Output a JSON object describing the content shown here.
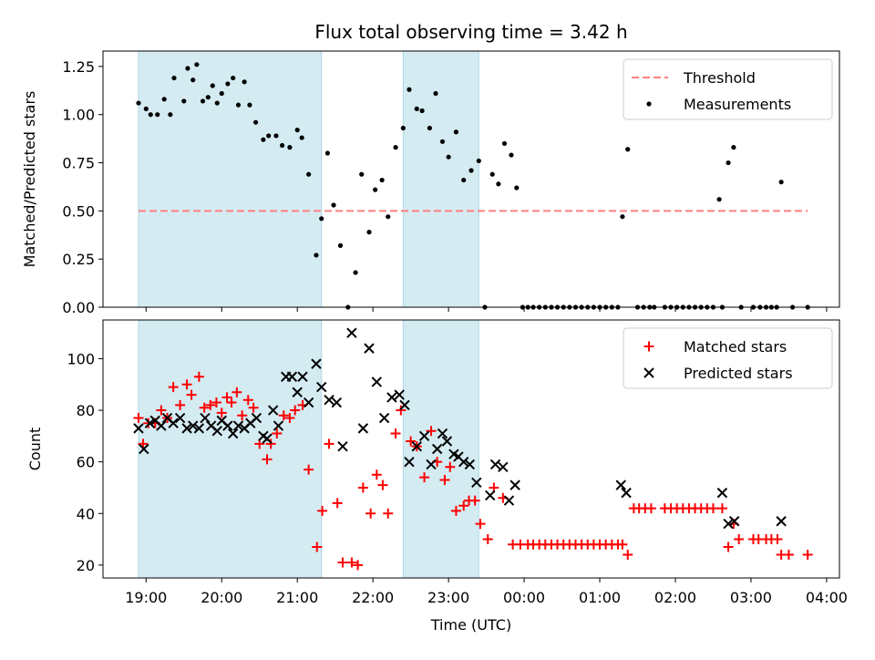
{
  "chart_data": {
    "title": "Flux total observing time = 3.42 h",
    "xlabel": "Time (UTC)",
    "x_unit": "hours UTC (values past 24 are after midnight)",
    "x_ticks": [
      "19:00",
      "20:00",
      "21:00",
      "22:00",
      "23:00",
      "00:00",
      "01:00",
      "02:00",
      "03:00",
      "04:00"
    ],
    "x_tick_values": [
      19,
      20,
      21,
      22,
      23,
      24,
      25,
      26,
      27,
      28
    ],
    "xlim": [
      18.43,
      28.17
    ],
    "shaded_intervals": [
      [
        18.9,
        21.32
      ],
      [
        22.4,
        23.4
      ]
    ],
    "shade_color": "#add8e6",
    "panels": [
      {
        "type": "scatter",
        "ylabel": "Matched/Predicted stars",
        "ylim": [
          0,
          1.33
        ],
        "y_ticks": [
          "0.00",
          "0.25",
          "0.50",
          "0.75",
          "1.00",
          "1.25"
        ],
        "y_tick_values": [
          0,
          0.25,
          0.5,
          0.75,
          1.0,
          1.25
        ],
        "threshold": {
          "name": "Threshold",
          "y": 0.5,
          "x_range": [
            18.9,
            27.75
          ],
          "color": "#ff8080"
        },
        "series": [
          {
            "name": "Measurements",
            "color": "#000000",
            "x": [
              18.9,
              19.0,
              19.06,
              19.15,
              19.24,
              19.32,
              19.37,
              19.5,
              19.55,
              19.62,
              19.67,
              19.75,
              19.82,
              19.88,
              19.94,
              20.0,
              20.08,
              20.15,
              20.22,
              20.3,
              20.37,
              20.45,
              20.55,
              20.62,
              20.72,
              20.8,
              20.9,
              21.0,
              21.06,
              21.15,
              21.25,
              21.32,
              21.4,
              21.48,
              21.57,
              21.67,
              21.77,
              21.85,
              21.95,
              22.03,
              22.12,
              22.2,
              22.3,
              22.4,
              22.48,
              22.58,
              22.65,
              22.75,
              22.83,
              22.92,
              23.0,
              23.1,
              23.2,
              23.3,
              23.4,
              23.48,
              23.58,
              23.66,
              23.74,
              23.83,
              23.9,
              23.98,
              24.05,
              24.12,
              24.2,
              24.28,
              24.36,
              24.44,
              24.52,
              24.6,
              24.68,
              24.76,
              24.84,
              24.92,
              25.0,
              25.08,
              25.16,
              25.24,
              25.3,
              25.37,
              25.5,
              25.58,
              25.66,
              25.72,
              25.86,
              25.94,
              26.02,
              26.1,
              26.18,
              26.26,
              26.34,
              26.42,
              26.5,
              26.58,
              26.62,
              26.7,
              26.77,
              26.87,
              27.03,
              27.12,
              27.2,
              27.27,
              27.34,
              27.4,
              27.55,
              27.75
            ],
            "y": [
              1.06,
              1.03,
              1.0,
              1.0,
              1.08,
              1.0,
              1.19,
              1.07,
              1.24,
              1.18,
              1.26,
              1.07,
              1.09,
              1.15,
              1.06,
              1.11,
              1.16,
              1.19,
              1.05,
              1.17,
              1.05,
              0.96,
              0.87,
              0.89,
              0.89,
              0.84,
              0.83,
              0.92,
              0.88,
              0.69,
              0.27,
              0.46,
              0.8,
              0.53,
              0.32,
              0.0,
              0.18,
              0.69,
              0.39,
              0.61,
              0.66,
              0.47,
              0.83,
              0.93,
              1.13,
              1.03,
              1.02,
              0.93,
              1.11,
              0.86,
              0.78,
              0.91,
              0.66,
              0.71,
              0.76,
              0.0,
              0.69,
              0.64,
              0.85,
              0.79,
              0.62,
              0.0,
              0.0,
              0.0,
              0.0,
              0.0,
              0.0,
              0.0,
              0.0,
              0.0,
              0.0,
              0.0,
              0.0,
              0.0,
              0.0,
              0.0,
              0.0,
              0.0,
              0.47,
              0.82,
              0.0,
              0.0,
              0.0,
              0.0,
              0.0,
              0.0,
              0.0,
              0.0,
              0.0,
              0.0,
              0.0,
              0.0,
              0.0,
              0.56,
              0.0,
              0.75,
              0.83,
              0.0,
              0.0,
              0.0,
              0.0,
              0.0,
              0.0,
              0.65,
              0.0,
              0.0
            ]
          }
        ],
        "legend": {
          "position": "upper right",
          "entries": [
            "Threshold",
            "Measurements"
          ]
        }
      },
      {
        "type": "scatter",
        "ylabel": "Count",
        "ylim": [
          15,
          115
        ],
        "y_ticks": [
          "20",
          "40",
          "60",
          "80",
          "100"
        ],
        "y_tick_values": [
          20,
          40,
          60,
          80,
          100
        ],
        "series": [
          {
            "name": "Matched stars",
            "marker": "+",
            "color": "#ff0000",
            "x": [
              18.9,
              18.96,
              19.03,
              19.12,
              19.2,
              19.28,
              19.36,
              19.45,
              19.54,
              19.6,
              19.7,
              19.77,
              19.85,
              19.93,
              20.0,
              20.07,
              20.13,
              20.2,
              20.27,
              20.35,
              20.42,
              20.5,
              20.6,
              20.65,
              20.73,
              20.82,
              20.9,
              20.97,
              21.07,
              21.15,
              21.26,
              21.33,
              21.42,
              21.53,
              21.6,
              21.72,
              21.8,
              21.87,
              21.97,
              22.05,
              22.13,
              22.2,
              22.3,
              22.37,
              22.5,
              22.58,
              22.68,
              22.77,
              22.85,
              22.95,
              23.02,
              23.1,
              23.2,
              23.27,
              23.35,
              23.42,
              23.52,
              23.6,
              23.72,
              23.85,
              23.95,
              24.05,
              24.12,
              24.2,
              24.28,
              24.36,
              24.44,
              24.52,
              24.6,
              24.68,
              24.76,
              24.84,
              24.92,
              25.0,
              25.08,
              25.16,
              25.24,
              25.3,
              25.37,
              25.45,
              25.52,
              25.6,
              25.68,
              25.86,
              25.94,
              26.02,
              26.1,
              26.18,
              26.26,
              26.34,
              26.42,
              26.5,
              26.62,
              26.7,
              26.77,
              26.84,
              27.03,
              27.1,
              27.2,
              27.27,
              27.35,
              27.4,
              27.5,
              27.75
            ],
            "y": [
              77,
              67,
              75,
              75,
              80,
              77,
              89,
              82,
              90,
              86,
              93,
              81,
              82,
              83,
              79,
              85,
              83,
              87,
              78,
              84,
              81,
              67,
              61,
              67,
              71,
              78,
              77,
              80,
              82,
              57,
              27,
              41,
              67,
              44,
              21,
              21,
              20,
              50,
              40,
              55,
              51,
              40,
              71,
              80,
              68,
              66,
              54,
              72,
              60,
              53,
              58,
              41,
              43,
              45,
              45,
              36,
              30,
              50,
              46,
              28,
              28,
              28,
              28,
              28,
              28,
              28,
              28,
              28,
              28,
              28,
              28,
              28,
              28,
              28,
              28,
              28,
              28,
              28,
              24,
              42,
              42,
              42,
              42,
              42,
              42,
              42,
              42,
              42,
              42,
              42,
              42,
              42,
              42,
              27,
              36,
              30,
              30,
              30,
              30,
              30,
              30,
              24,
              24,
              24
            ]
          },
          {
            "name": "Predicted stars",
            "marker": "x",
            "color": "#000000",
            "x": [
              18.9,
              18.97,
              19.05,
              19.12,
              19.2,
              19.28,
              19.36,
              19.45,
              19.54,
              19.62,
              19.7,
              19.78,
              19.86,
              19.94,
              20.0,
              20.08,
              20.15,
              20.22,
              20.3,
              20.38,
              20.46,
              20.55,
              20.6,
              20.68,
              20.75,
              20.85,
              20.93,
              21.0,
              21.07,
              21.15,
              21.25,
              21.32,
              21.42,
              21.52,
              21.6,
              21.72,
              21.87,
              21.95,
              22.05,
              22.15,
              22.25,
              22.35,
              22.42,
              22.48,
              22.58,
              22.68,
              22.77,
              22.85,
              22.92,
              22.98,
              23.07,
              23.13,
              23.2,
              23.28,
              23.37,
              23.55,
              23.62,
              23.72,
              23.8,
              23.88,
              25.28,
              25.35,
              26.62,
              26.7,
              26.78,
              27.4
            ],
            "y": [
              73,
              65,
              75,
              76,
              74,
              77,
              75,
              77,
              73,
              74,
              73,
              77,
              74,
              72,
              76,
              74,
              71,
              74,
              73,
              75,
              77,
              70,
              69,
              80,
              74,
              93,
              93,
              87,
              93,
              83,
              98,
              89,
              84,
              83,
              66,
              110,
              73,
              104,
              91,
              77,
              85,
              86,
              82,
              60,
              66,
              70,
              59,
              65,
              71,
              68,
              63,
              62,
              60,
              59,
              52,
              47,
              59,
              58,
              45,
              51,
              51,
              48,
              48,
              36,
              37,
              37
            ]
          }
        ],
        "legend": {
          "position": "upper right",
          "entries": [
            "Matched stars",
            "Predicted stars"
          ]
        }
      }
    ]
  }
}
